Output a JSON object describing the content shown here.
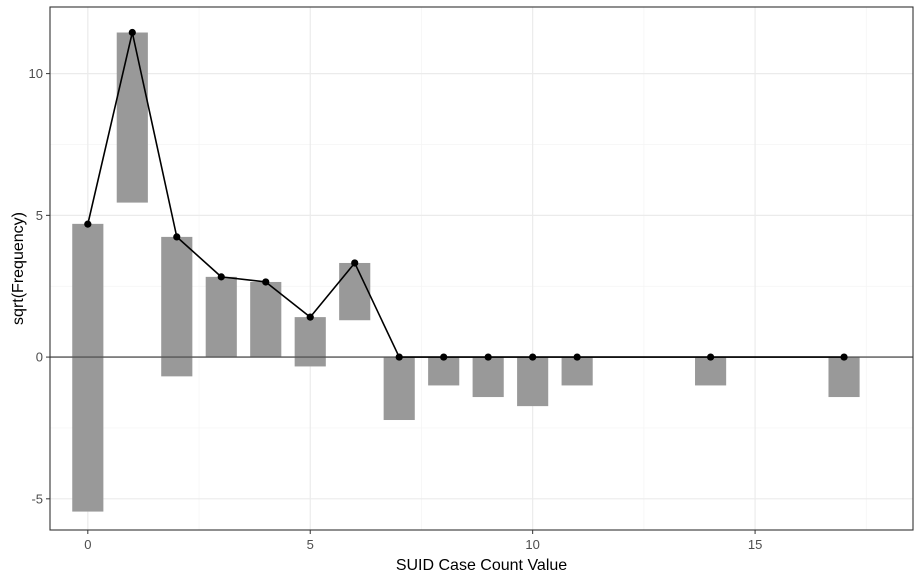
{
  "chart_data": {
    "type": "bar",
    "title": "",
    "xlabel": "SUID Case Count Value",
    "ylabel": "sqrt(Frequency)",
    "xlim": [
      -0.85,
      18.55
    ],
    "ylim": [
      -6.1,
      12.35
    ],
    "x_ticks": [
      0,
      5,
      10,
      15
    ],
    "x_tick_labels": [
      "0",
      "5",
      "10",
      "15"
    ],
    "y_ticks": [
      -5,
      0,
      5,
      10
    ],
    "y_tick_labels": [
      "-5",
      "0",
      "5",
      "10"
    ],
    "x_minor_ticks": [
      2.5,
      7.5,
      12.5,
      17.5
    ],
    "y_minor_ticks": [
      -2.5,
      2.5,
      7.5
    ],
    "grid": true,
    "zero_line": true,
    "bar_width": 0.7,
    "colors": {
      "bar": "#999999",
      "line": "#000000",
      "point": "#000000",
      "panel_border": "#333333",
      "grid_major": "#ebebeb",
      "grid_minor": "#f4f4f4"
    },
    "bars": [
      {
        "x": 0,
        "ymin": -5.45,
        "ymax": 4.7
      },
      {
        "x": 1,
        "ymin": 5.45,
        "ymax": 11.45
      },
      {
        "x": 2,
        "ymin": -0.68,
        "ymax": 4.24
      },
      {
        "x": 3,
        "ymin": 0,
        "ymax": 2.83
      },
      {
        "x": 4,
        "ymin": 0,
        "ymax": 2.65
      },
      {
        "x": 5,
        "ymin": -0.33,
        "ymax": 1.41
      },
      {
        "x": 6,
        "ymin": 1.3,
        "ymax": 3.32
      },
      {
        "x": 7,
        "ymin": -2.22,
        "ymax": 0
      },
      {
        "x": 8,
        "ymin": -1.0,
        "ymax": 0
      },
      {
        "x": 9,
        "ymin": -1.41,
        "ymax": 0
      },
      {
        "x": 10,
        "ymin": -1.73,
        "ymax": 0
      },
      {
        "x": 11,
        "ymin": -1.0,
        "ymax": 0
      },
      {
        "x": 14,
        "ymin": -1.0,
        "ymax": 0
      },
      {
        "x": 17,
        "ymin": -1.41,
        "ymax": 0
      }
    ],
    "series": [
      {
        "x": [
          0,
          1,
          2,
          3,
          4,
          5,
          6,
          7,
          8,
          9,
          10,
          11,
          14,
          17
        ],
        "values": [
          4.69,
          11.45,
          4.24,
          2.83,
          2.65,
          1.41,
          3.32,
          0,
          0,
          0,
          0,
          0,
          0,
          0
        ]
      }
    ]
  }
}
